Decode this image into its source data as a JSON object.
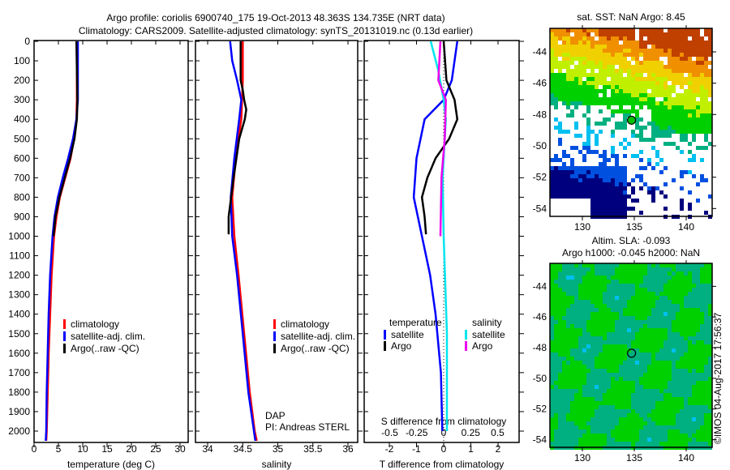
{
  "title_line1": "Argo profile: coriolis 6900740_175 19-Oct-2013 48.363S 134.735E (NRT data)",
  "title_line2": "Climatology: CARS2009. Satellite-adjusted climatology: synTS_20131019.nc (0.13d earlier)",
  "colors": {
    "climatology": "#ff0000",
    "satellite": "#0000ff",
    "argo": "#000000",
    "sal_satellite": "#00e5ee",
    "sal_argo": "#ee00ee"
  },
  "depth_ticks": [
    "0",
    "100",
    "200",
    "300",
    "400",
    "500",
    "600",
    "700",
    "800",
    "900",
    "1000",
    "1100",
    "1200",
    "1300",
    "1400",
    "1500",
    "1600",
    "1700",
    "1800",
    "1900",
    "2000"
  ],
  "chart_data": [
    {
      "type": "line",
      "xlabel": "temperature (deg C)",
      "ylabel": "",
      "xlim": [
        -2,
        31.5
      ],
      "ylim": [
        2050,
        0
      ],
      "xticks": [
        "0",
        "5",
        "10",
        "15",
        "20",
        "25",
        "30"
      ],
      "legend": [
        "climatology",
        "satellite-adj. clim.",
        "Argo(..raw -QC)"
      ],
      "series": [
        {
          "name": "climatology",
          "depth": [
            0,
            300,
            400,
            500,
            600,
            700,
            800,
            900,
            1000,
            1200,
            1400,
            1600,
            1800,
            2000,
            2050
          ],
          "values": [
            8.8,
            8.8,
            8.7,
            8.2,
            7.5,
            6.4,
            5.3,
            4.6,
            4.1,
            3.6,
            3.3,
            3.0,
            2.8,
            2.6,
            2.5
          ]
        },
        {
          "name": "satellite-adj. clim.",
          "depth": [
            0,
            300,
            400,
            500,
            600,
            700,
            800,
            900,
            1000,
            1200,
            1400,
            1600,
            1800,
            2000,
            2050
          ],
          "values": [
            9.0,
            9.0,
            8.7,
            8.0,
            7.0,
            5.9,
            4.9,
            4.2,
            3.8,
            3.3,
            3.0,
            2.8,
            2.6,
            2.5,
            2.4
          ]
        },
        {
          "name": "Argo(..raw -QC)",
          "depth": [
            0,
            300,
            400,
            500,
            600,
            700,
            800,
            900,
            1000
          ],
          "values": [
            8.7,
            8.9,
            8.8,
            8.3,
            7.4,
            6.3,
            5.2,
            4.4,
            4.0
          ]
        }
      ]
    },
    {
      "type": "line",
      "xlabel": "salinity",
      "xlim": [
        33.83,
        36.12
      ],
      "ylim": [
        2050,
        0
      ],
      "xticks": [
        "34",
        "34.5",
        "35",
        "35.5",
        "36"
      ],
      "legend": [
        "climatology",
        "satellite-adj. clim.",
        "Argo(..raw -QC)"
      ],
      "annotation": [
        "DAP",
        "PI: Andreas STERL"
      ],
      "series": [
        {
          "name": "climatology",
          "depth": [
            0,
            200,
            400,
            600,
            800,
            1000,
            1200,
            1500,
            1800,
            2000,
            2050
          ],
          "values": [
            34.5,
            34.5,
            34.48,
            34.4,
            34.35,
            34.38,
            34.44,
            34.52,
            34.6,
            34.67,
            34.7
          ]
        },
        {
          "name": "satellite-adj. clim.",
          "depth": [
            0,
            100,
            200,
            300,
            400,
            600,
            800,
            1000,
            1200,
            1500,
            1800,
            2000,
            2050
          ],
          "values": [
            34.32,
            34.35,
            34.42,
            34.48,
            34.45,
            34.38,
            34.33,
            34.35,
            34.42,
            34.5,
            34.58,
            34.66,
            34.68
          ]
        },
        {
          "name": "Argo(..raw -QC)",
          "depth": [
            0,
            200,
            250,
            300,
            350,
            400,
            500,
            700,
            900,
            990
          ],
          "values": [
            34.47,
            34.47,
            34.5,
            34.52,
            34.55,
            34.53,
            34.45,
            34.37,
            34.3,
            34.3
          ]
        }
      ]
    },
    {
      "type": "line",
      "xlabel": "T difference from climatology",
      "x2label": "S difference from climatology",
      "xlim": [
        -3,
        2.8
      ],
      "ylim": [
        2050,
        0
      ],
      "xticks": [
        "-2",
        "-1",
        "0",
        "1",
        "2"
      ],
      "x2ticks": [
        "-0.5",
        "-0.25",
        "0",
        "0.25",
        "0.5"
      ],
      "legend": {
        "temperature": "temperature",
        "salinity": "salinity",
        "items": [
          "satellite",
          "Argo",
          "satellite",
          "Argo"
        ]
      },
      "series": [
        {
          "name": "T satellite",
          "axis": "T",
          "depth": [
            0,
            200,
            300,
            400,
            600,
            800,
            1000,
            1200,
            1400,
            1700,
            2000
          ],
          "values": [
            0.5,
            0.3,
            0,
            -0.7,
            -1.0,
            -1.1,
            -0.8,
            -0.5,
            -0.3,
            -0.1,
            -0.05
          ]
        },
        {
          "name": "T Argo",
          "axis": "T",
          "depth": [
            0,
            200,
            300,
            400,
            500,
            600,
            700,
            800,
            900,
            990
          ],
          "values": [
            0,
            0.1,
            0.4,
            0.5,
            0.2,
            -0.3,
            -0.6,
            -0.8,
            -0.7,
            -0.65
          ]
        },
        {
          "name": "S satellite",
          "axis": "S",
          "depth": [
            0,
            150,
            300,
            400,
            500,
            700,
            1000,
            1500,
            2000
          ],
          "values": [
            -0.12,
            -0.05,
            0,
            0.02,
            0.01,
            -0.01,
            0,
            0.03,
            0.03
          ]
        },
        {
          "name": "S Argo",
          "axis": "S",
          "depth": [
            0,
            200,
            300,
            500,
            700,
            1000
          ],
          "values": [
            -0.03,
            -0.05,
            0.02,
            0.01,
            -0.02,
            -0.03
          ]
        }
      ]
    }
  ],
  "map_top": {
    "title": "sat. SST: NaN Argo: 8.45",
    "lat_ticks": [
      "-44",
      "-46",
      "-48",
      "-50",
      "-52",
      "-54"
    ],
    "lon_ticks": [
      "130",
      "135",
      "140"
    ]
  },
  "map_bottom": {
    "title1": "Altim. SLA: -0.093",
    "title2": "Argo h1000: -0.045 h2000: NaN",
    "lat_ticks": [
      "-44",
      "-46",
      "-48",
      "-50",
      "-52",
      "-54"
    ],
    "lon_ticks": [
      "130",
      "135",
      "140"
    ]
  },
  "argo_position": {
    "lon": 134.735,
    "lat": -48.363
  },
  "credit": "©IMOS 04-Aug-2017 17:56:37"
}
